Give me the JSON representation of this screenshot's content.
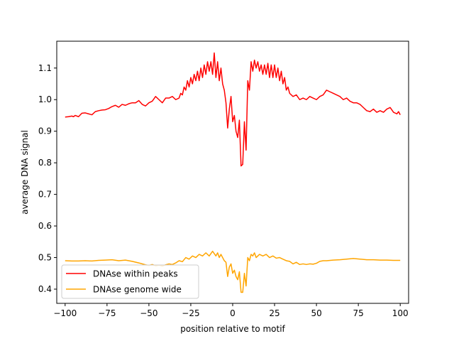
{
  "chart_data": {
    "type": "line",
    "title": "",
    "xlabel": "position relative to motif",
    "ylabel": "average DNA signal",
    "xlim": [
      -105,
      105
    ],
    "ylim": [
      0.355,
      1.185
    ],
    "xticks": [
      -100,
      -75,
      -50,
      -25,
      0,
      25,
      50,
      75,
      100
    ],
    "yticks": [
      0.4,
      0.5,
      0.6,
      0.7,
      0.8,
      0.9,
      1.0,
      1.1
    ],
    "grid": false,
    "legend_position": "lower-left",
    "series": [
      {
        "name": "DNAse within peaks",
        "color": "#ff0000",
        "points": [
          [
            -100,
            0.945
          ],
          [
            -98,
            0.946
          ],
          [
            -96,
            0.948
          ],
          [
            -95,
            0.946
          ],
          [
            -94,
            0.95
          ],
          [
            -92,
            0.946
          ],
          [
            -90,
            0.957
          ],
          [
            -88,
            0.958
          ],
          [
            -86,
            0.955
          ],
          [
            -84,
            0.952
          ],
          [
            -82,
            0.962
          ],
          [
            -80,
            0.965
          ],
          [
            -78,
            0.967
          ],
          [
            -76,
            0.968
          ],
          [
            -74,
            0.972
          ],
          [
            -72,
            0.978
          ],
          [
            -70,
            0.982
          ],
          [
            -68,
            0.976
          ],
          [
            -66,
            0.985
          ],
          [
            -64,
            0.982
          ],
          [
            -62,
            0.987
          ],
          [
            -60,
            0.99
          ],
          [
            -58,
            0.99
          ],
          [
            -56,
            0.997
          ],
          [
            -54,
            0.985
          ],
          [
            -52,
            0.98
          ],
          [
            -50,
            0.99
          ],
          [
            -48,
            0.995
          ],
          [
            -46,
            1.01
          ],
          [
            -44,
            1.0
          ],
          [
            -42,
            0.99
          ],
          [
            -40,
            1.005
          ],
          [
            -38,
            1.005
          ],
          [
            -36,
            1.01
          ],
          [
            -34,
            1.0
          ],
          [
            -32,
            1.005
          ],
          [
            -31,
            1.02
          ],
          [
            -30,
            1.015
          ],
          [
            -29,
            1.04
          ],
          [
            -28,
            1.03
          ],
          [
            -27,
            1.06
          ],
          [
            -26,
            1.04
          ],
          [
            -25,
            1.07
          ],
          [
            -24,
            1.05
          ],
          [
            -23,
            1.08
          ],
          [
            -22,
            1.06
          ],
          [
            -21,
            1.09
          ],
          [
            -20,
            1.06
          ],
          [
            -19,
            1.1
          ],
          [
            -18,
            1.07
          ],
          [
            -17,
            1.11
          ],
          [
            -16,
            1.08
          ],
          [
            -15,
            1.12
          ],
          [
            -14,
            1.09
          ],
          [
            -13,
            1.12
          ],
          [
            -12,
            1.08
          ],
          [
            -11,
            1.148
          ],
          [
            -10,
            1.07
          ],
          [
            -9,
            1.12
          ],
          [
            -8,
            1.06
          ],
          [
            -7,
            1.1
          ],
          [
            -6,
            1.05
          ],
          [
            -5,
            1.03
          ],
          [
            -4,
            0.99
          ],
          [
            -3,
            0.91
          ],
          [
            -2,
            0.97
          ],
          [
            -1,
            1.01
          ],
          [
            0,
            0.93
          ],
          [
            1,
            0.95
          ],
          [
            2,
            0.9
          ],
          [
            3,
            0.88
          ],
          [
            4,
            0.935
          ],
          [
            5,
            0.79
          ],
          [
            6,
            0.795
          ],
          [
            7,
            0.93
          ],
          [
            8,
            0.84
          ],
          [
            9,
            1.06
          ],
          [
            10,
            1.03
          ],
          [
            11,
            1.12
          ],
          [
            12,
            1.09
          ],
          [
            13,
            1.125
          ],
          [
            14,
            1.1
          ],
          [
            15,
            1.12
          ],
          [
            16,
            1.09
          ],
          [
            17,
            1.11
          ],
          [
            18,
            1.08
          ],
          [
            19,
            1.11
          ],
          [
            20,
            1.08
          ],
          [
            21,
            1.115
          ],
          [
            22,
            1.07
          ],
          [
            23,
            1.11
          ],
          [
            24,
            1.07
          ],
          [
            25,
            1.11
          ],
          [
            26,
            1.07
          ],
          [
            27,
            1.1
          ],
          [
            28,
            1.06
          ],
          [
            29,
            1.09
          ],
          [
            30,
            1.05
          ],
          [
            31,
            1.07
          ],
          [
            32,
            1.03
          ],
          [
            33,
            1.04
          ],
          [
            34,
            1.02
          ],
          [
            36,
            1.01
          ],
          [
            38,
            1.015
          ],
          [
            40,
            1.0
          ],
          [
            42,
            1.005
          ],
          [
            44,
            1.0
          ],
          [
            46,
            1.01
          ],
          [
            48,
            1.005
          ],
          [
            50,
            1.0
          ],
          [
            52,
            1.01
          ],
          [
            54,
            1.015
          ],
          [
            56,
            1.03
          ],
          [
            58,
            1.025
          ],
          [
            60,
            1.02
          ],
          [
            62,
            1.015
          ],
          [
            64,
            1.01
          ],
          [
            66,
            1.0
          ],
          [
            68,
            1.005
          ],
          [
            70,
            0.995
          ],
          [
            72,
            0.99
          ],
          [
            74,
            0.99
          ],
          [
            76,
            0.985
          ],
          [
            78,
            0.975
          ],
          [
            80,
            0.965
          ],
          [
            82,
            0.962
          ],
          [
            84,
            0.97
          ],
          [
            86,
            0.96
          ],
          [
            88,
            0.965
          ],
          [
            90,
            0.96
          ],
          [
            92,
            0.97
          ],
          [
            94,
            0.975
          ],
          [
            96,
            0.96
          ],
          [
            98,
            0.955
          ],
          [
            99,
            0.962
          ],
          [
            100,
            0.952
          ]
        ]
      },
      {
        "name": "DNAse genome wide",
        "color": "#ffa500",
        "points": [
          [
            -100,
            0.49
          ],
          [
            -96,
            0.489
          ],
          [
            -92,
            0.489
          ],
          [
            -88,
            0.49
          ],
          [
            -84,
            0.489
          ],
          [
            -80,
            0.491
          ],
          [
            -76,
            0.492
          ],
          [
            -72,
            0.493
          ],
          [
            -68,
            0.49
          ],
          [
            -64,
            0.492
          ],
          [
            -60,
            0.488
          ],
          [
            -56,
            0.483
          ],
          [
            -52,
            0.477
          ],
          [
            -50,
            0.475
          ],
          [
            -48,
            0.478
          ],
          [
            -46,
            0.474
          ],
          [
            -44,
            0.476
          ],
          [
            -42,
            0.473
          ],
          [
            -40,
            0.477
          ],
          [
            -38,
            0.48
          ],
          [
            -36,
            0.478
          ],
          [
            -34,
            0.483
          ],
          [
            -32,
            0.49
          ],
          [
            -30,
            0.487
          ],
          [
            -28,
            0.5
          ],
          [
            -26,
            0.495
          ],
          [
            -24,
            0.505
          ],
          [
            -22,
            0.5
          ],
          [
            -20,
            0.51
          ],
          [
            -18,
            0.505
          ],
          [
            -16,
            0.515
          ],
          [
            -14,
            0.505
          ],
          [
            -12,
            0.52
          ],
          [
            -10,
            0.505
          ],
          [
            -9,
            0.515
          ],
          [
            -8,
            0.5
          ],
          [
            -7,
            0.51
          ],
          [
            -6,
            0.5
          ],
          [
            -5,
            0.49
          ],
          [
            -4,
            0.485
          ],
          [
            -3,
            0.44
          ],
          [
            -2,
            0.47
          ],
          [
            -1,
            0.48
          ],
          [
            0,
            0.45
          ],
          [
            1,
            0.46
          ],
          [
            2,
            0.44
          ],
          [
            3,
            0.43
          ],
          [
            4,
            0.455
          ],
          [
            5,
            0.39
          ],
          [
            6,
            0.39
          ],
          [
            7,
            0.45
          ],
          [
            8,
            0.41
          ],
          [
            9,
            0.5
          ],
          [
            10,
            0.49
          ],
          [
            11,
            0.51
          ],
          [
            12,
            0.505
          ],
          [
            13,
            0.515
          ],
          [
            14,
            0.5
          ],
          [
            16,
            0.51
          ],
          [
            18,
            0.505
          ],
          [
            20,
            0.51
          ],
          [
            22,
            0.5
          ],
          [
            24,
            0.505
          ],
          [
            26,
            0.498
          ],
          [
            28,
            0.5
          ],
          [
            30,
            0.495
          ],
          [
            32,
            0.49
          ],
          [
            34,
            0.488
          ],
          [
            36,
            0.48
          ],
          [
            38,
            0.485
          ],
          [
            40,
            0.478
          ],
          [
            42,
            0.48
          ],
          [
            44,
            0.478
          ],
          [
            46,
            0.48
          ],
          [
            48,
            0.479
          ],
          [
            50,
            0.482
          ],
          [
            52,
            0.488
          ],
          [
            54,
            0.49
          ],
          [
            56,
            0.49
          ],
          [
            60,
            0.492
          ],
          [
            64,
            0.493
          ],
          [
            68,
            0.495
          ],
          [
            72,
            0.497
          ],
          [
            76,
            0.495
          ],
          [
            80,
            0.493
          ],
          [
            84,
            0.493
          ],
          [
            88,
            0.492
          ],
          [
            92,
            0.492
          ],
          [
            96,
            0.491
          ],
          [
            100,
            0.491
          ]
        ]
      }
    ]
  }
}
